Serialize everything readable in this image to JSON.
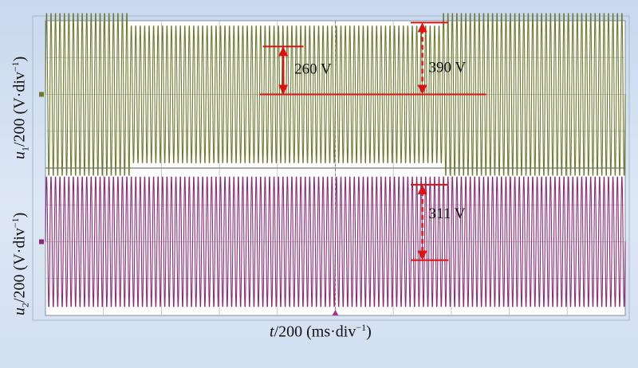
{
  "chart_data": {
    "type": "line",
    "title": "",
    "xlabel": {
      "var": "t",
      "rest": "/200 (ms·div",
      "sup": "−1",
      "close": ")"
    },
    "ylabels": [
      {
        "var": "u",
        "sub": "1",
        "rest": "/200 (V·div",
        "sup": "−1",
        "close": ")"
      },
      {
        "var": "u",
        "sub": "2",
        "rest": "/200 (V·div",
        "sup": "−1",
        "close": ")"
      }
    ],
    "grid": true,
    "x_divisions": 10,
    "y_divisions": 8,
    "series": [
      {
        "color": "#6b7a2c",
        "carrier_cycles": 130,
        "segments": [
          {
            "x": [
              0.0,
              1.45
            ],
            "peak_div": 2.25
          },
          {
            "x": [
              1.45,
              6.85
            ],
            "peak_div": 1.9
          },
          {
            "x": [
              6.85,
              10.0
            ],
            "peak_div": 2.25
          }
        ]
      },
      {
        "color": "#8c2a78",
        "carrier_cycles": 130,
        "segments": [
          {
            "x": [
              0.0,
              10.0
            ],
            "peak_div": 1.8
          }
        ]
      }
    ],
    "annotations": [
      {
        "text": "260 V",
        "series": 0,
        "level_div": 1.3,
        "arrow_x_div": 4.1
      },
      {
        "text": "390 V",
        "series": 0,
        "level_div": 1.95,
        "arrow_x_div": 6.5
      },
      {
        "text": "311 V",
        "series": 1,
        "level_div": 1.55,
        "arrow_x_div": 6.5
      }
    ],
    "reference_color": "#e01010"
  }
}
